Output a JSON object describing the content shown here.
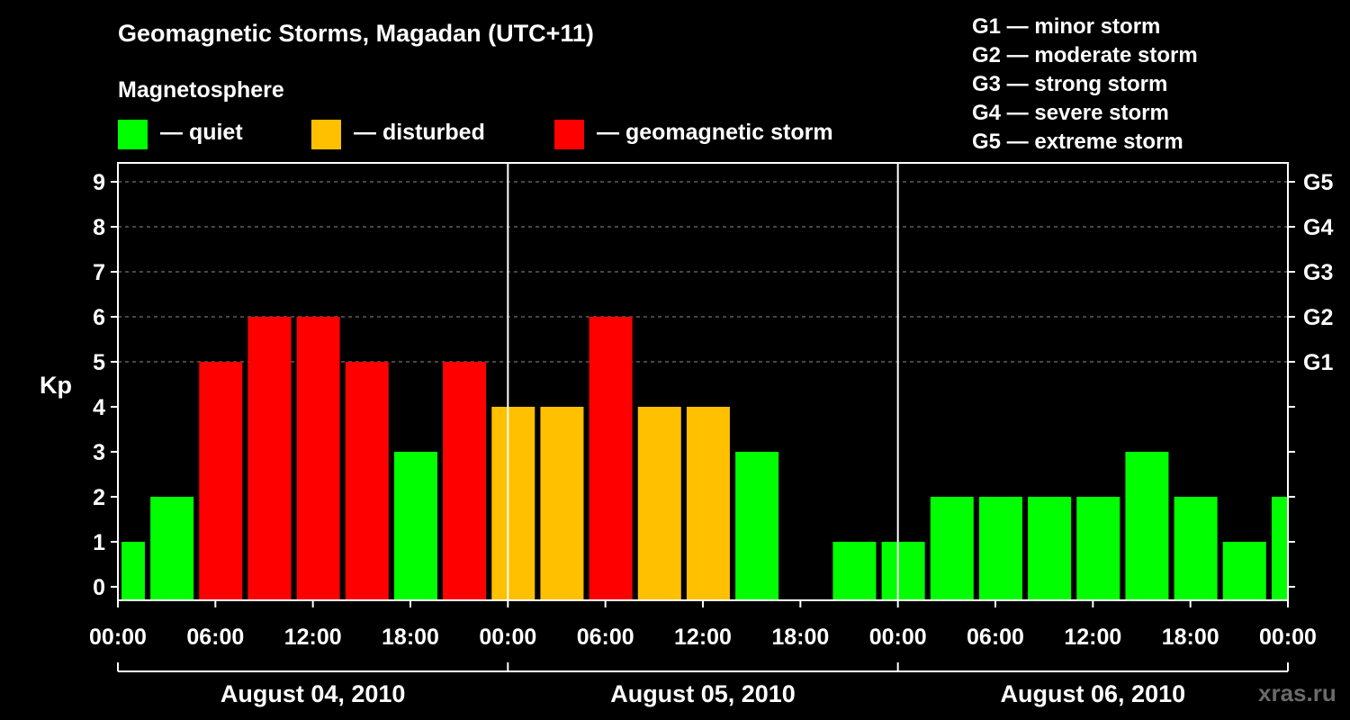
{
  "header": {
    "title": "Geomagnetic Storms, Magadan (UTC+11)",
    "subtitle": "Magnetosphere"
  },
  "legend": [
    {
      "label": "— quiet",
      "color": "#00ff00"
    },
    {
      "label": "— disturbed",
      "color": "#ffc000"
    },
    {
      "label": "— geomagnetic storm",
      "color": "#ff0000"
    }
  ],
  "storm_levels": [
    "G1 — minor storm",
    "G2 — moderate storm",
    "G3 — strong storm",
    "G4 — severe storm",
    "G5 — extreme storm"
  ],
  "watermark": "xras.ru",
  "colors": {
    "quiet": "#00ff00",
    "disturbed": "#ffc000",
    "storm": "#ff0000",
    "grid": "#8c8c8c",
    "axis": "#ffffff",
    "background": "#000000"
  },
  "chart_data": {
    "type": "bar",
    "ylabel": "Kp",
    "ylim": [
      0,
      9
    ],
    "y_ticks": [
      0,
      1,
      2,
      3,
      4,
      5,
      6,
      7,
      8,
      9
    ],
    "right_tick_labels": [
      {
        "kp": 5,
        "label": "G1"
      },
      {
        "kp": 6,
        "label": "G2"
      },
      {
        "kp": 7,
        "label": "G3"
      },
      {
        "kp": 8,
        "label": "G4"
      },
      {
        "kp": 9,
        "label": "G5"
      }
    ],
    "grid": "horizontal dashed at Kp 5-9",
    "x_range_hours": [
      0,
      72
    ],
    "x_ticks": [
      {
        "hour": 0,
        "label": "00:00"
      },
      {
        "hour": 6,
        "label": "06:00"
      },
      {
        "hour": 12,
        "label": "12:00"
      },
      {
        "hour": 18,
        "label": "18:00"
      },
      {
        "hour": 24,
        "label": "00:00"
      },
      {
        "hour": 30,
        "label": "06:00"
      },
      {
        "hour": 36,
        "label": "12:00"
      },
      {
        "hour": 42,
        "label": "18:00"
      },
      {
        "hour": 48,
        "label": "00:00"
      },
      {
        "hour": 54,
        "label": "06:00"
      },
      {
        "hour": 60,
        "label": "12:00"
      },
      {
        "hour": 66,
        "label": "18:00"
      },
      {
        "hour": 72,
        "label": "00:00"
      }
    ],
    "days": [
      {
        "label": "August 04, 2010",
        "start_hour": 0,
        "end_hour": 24
      },
      {
        "label": "August 05, 2010",
        "start_hour": 24,
        "end_hour": 48
      },
      {
        "label": "August 06, 2010",
        "start_hour": 48,
        "end_hour": 72
      }
    ],
    "bar_interval_hours": 3,
    "bars": [
      {
        "start": -1,
        "value": 1,
        "level": "quiet"
      },
      {
        "start": 2,
        "value": 2,
        "level": "quiet"
      },
      {
        "start": 5,
        "value": 5,
        "level": "storm"
      },
      {
        "start": 8,
        "value": 6,
        "level": "storm"
      },
      {
        "start": 11,
        "value": 6,
        "level": "storm"
      },
      {
        "start": 14,
        "value": 5,
        "level": "storm"
      },
      {
        "start": 17,
        "value": 3,
        "level": "quiet"
      },
      {
        "start": 20,
        "value": 5,
        "level": "storm"
      },
      {
        "start": 23,
        "value": 4,
        "level": "disturbed"
      },
      {
        "start": 26,
        "value": 4,
        "level": "disturbed"
      },
      {
        "start": 29,
        "value": 6,
        "level": "storm"
      },
      {
        "start": 32,
        "value": 4,
        "level": "disturbed"
      },
      {
        "start": 35,
        "value": 4,
        "level": "disturbed"
      },
      {
        "start": 38,
        "value": 3,
        "level": "quiet"
      },
      {
        "start": 41,
        "value": 0,
        "level": "quiet"
      },
      {
        "start": 44,
        "value": 1,
        "level": "quiet"
      },
      {
        "start": 47,
        "value": 1,
        "level": "quiet"
      },
      {
        "start": 50,
        "value": 2,
        "level": "quiet"
      },
      {
        "start": 53,
        "value": 2,
        "level": "quiet"
      },
      {
        "start": 56,
        "value": 2,
        "level": "quiet"
      },
      {
        "start": 59,
        "value": 2,
        "level": "quiet"
      },
      {
        "start": 62,
        "value": 3,
        "level": "quiet"
      },
      {
        "start": 65,
        "value": 2,
        "level": "quiet"
      },
      {
        "start": 68,
        "value": 1,
        "level": "quiet"
      },
      {
        "start": 71,
        "value": 2,
        "level": "quiet"
      }
    ]
  }
}
